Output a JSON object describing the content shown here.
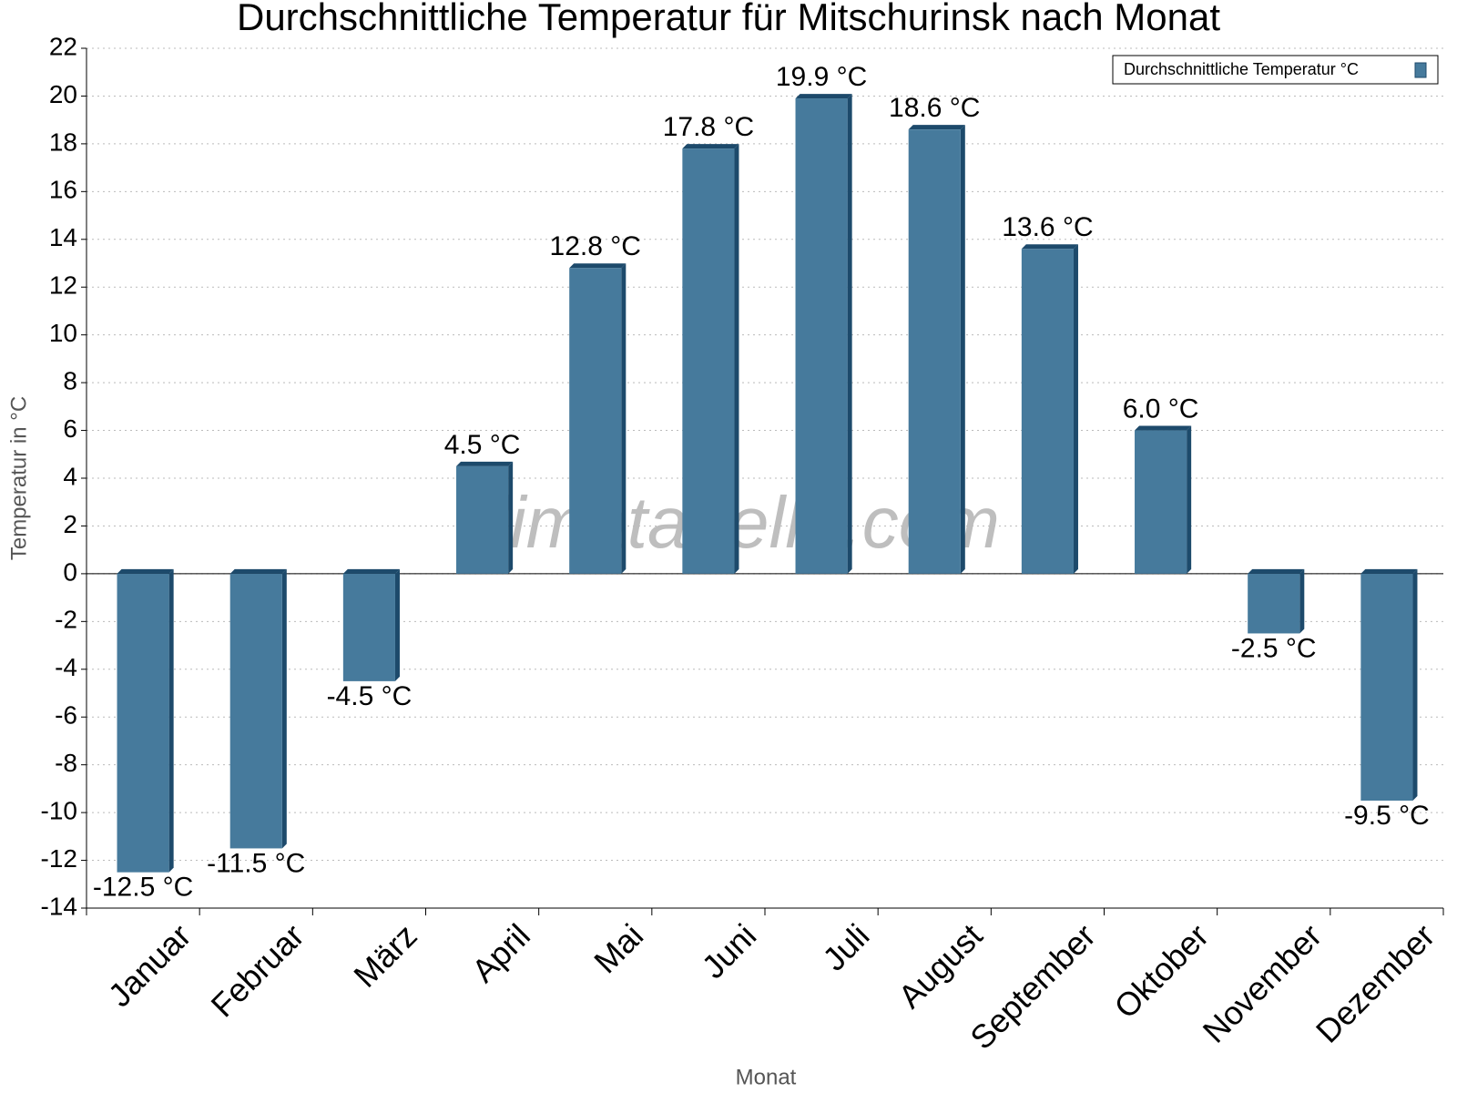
{
  "chart_data": {
    "type": "bar",
    "title": "Durchschnittliche Temperatur für Mitschurinsk nach Monat",
    "x_label": "Monat",
    "y_label": "Temperatur in °C",
    "watermark": "klimatabelle.com",
    "categories": [
      "Januar",
      "Februar",
      "März",
      "April",
      "Mai",
      "Juni",
      "Juli",
      "August",
      "September",
      "Oktober",
      "November",
      "Dezember"
    ],
    "series": [
      {
        "name": "Durchschnittliche Temperatur °C",
        "color": "#467a9c",
        "values": [
          -12.5,
          -11.5,
          -4.5,
          4.5,
          12.8,
          17.8,
          19.9,
          18.6,
          13.6,
          6.0,
          -2.5,
          -9.5
        ],
        "value_labels": [
          "-12.5 °C",
          "-11.5 °C",
          "-4.5 °C",
          "4.5 °C",
          "12.8 °C",
          "17.8 °C",
          "19.9 °C",
          "18.6 °C",
          "13.6 °C",
          "6.0 °C",
          "-2.5 °C",
          "-9.5 °C"
        ]
      }
    ],
    "ylim": [
      -14,
      22
    ],
    "yticks": [
      -14,
      -12,
      -10,
      -8,
      -6,
      -4,
      -2,
      0,
      2,
      4,
      6,
      8,
      10,
      12,
      14,
      16,
      18,
      20,
      22
    ],
    "grid": true,
    "legend": "top-right"
  }
}
